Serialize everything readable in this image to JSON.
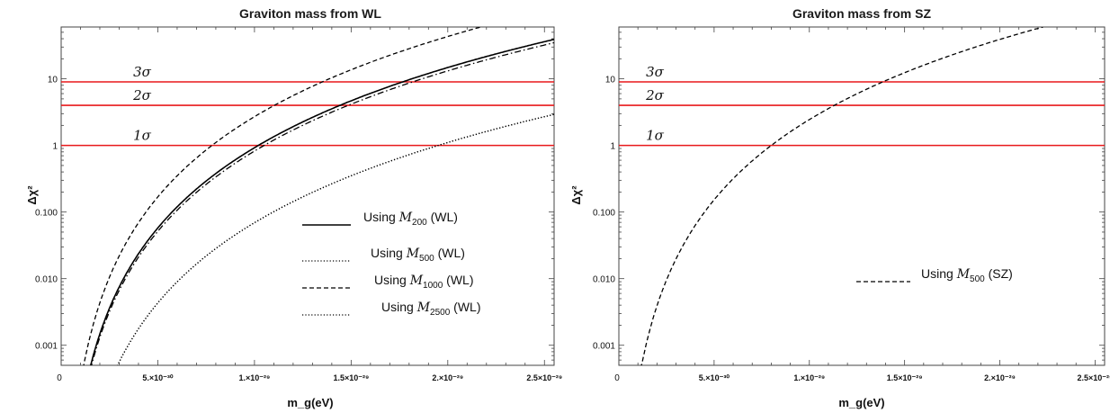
{
  "chart_data": [
    {
      "type": "line",
      "title": "Graviton mass from WL",
      "xlabel": "m_g(eV)",
      "ylabel": "Δχ²",
      "x_scale": "linear",
      "y_scale": "log",
      "xlim": [
        0,
        2.55e-29
      ],
      "ylim": [
        0.0005,
        60
      ],
      "x_ticks": [
        {
          "value": 0,
          "label": "0"
        },
        {
          "value": 5e-30,
          "label": "5.×10⁻³⁰"
        },
        {
          "value": 1e-29,
          "label": "1.×10⁻²⁹"
        },
        {
          "value": 1.5e-29,
          "label": "1.5×10⁻²⁹"
        },
        {
          "value": 2e-29,
          "label": "2.×10⁻²⁹"
        },
        {
          "value": 2.5e-29,
          "label": "2.5×10⁻²⁹"
        }
      ],
      "y_ticks": [
        {
          "value": 0.001,
          "label": "0.001"
        },
        {
          "value": 0.01,
          "label": "0.010"
        },
        {
          "value": 0.1,
          "label": "0.100"
        },
        {
          "value": 1,
          "label": "1"
        },
        {
          "value": 10,
          "label": "10"
        }
      ],
      "reference_lines": [
        {
          "value": 1,
          "label": "1σ",
          "color": "#e8191b"
        },
        {
          "value": 4,
          "label": "2σ",
          "color": "#e8191b"
        },
        {
          "value": 9,
          "label": "3σ",
          "color": "#e8191b"
        }
      ],
      "series": [
        {
          "name": "Using M200 (WL)",
          "style": "solid",
          "color": "#000000",
          "x_at_1sigma": 1.02e-29,
          "legend_label": "Using ",
          "legend_symbol": "M",
          "legend_sub": "200",
          "legend_suffix": " (WL)"
        },
        {
          "name": "Using M500 (WL)",
          "style": "dotted",
          "color": "#000000",
          "x_at_1sigma": 1.95e-29,
          "legend_label": "Using ",
          "legend_symbol": "M",
          "legend_sub": "500",
          "legend_suffix": " (WL)"
        },
        {
          "name": "Using M1000 (WL)",
          "style": "dashed",
          "color": "#000000",
          "x_at_1sigma": 7.8e-30,
          "legend_label": "Using ",
          "legend_symbol": "M",
          "legend_sub": "1000",
          "legend_suffix": " (WL)"
        },
        {
          "name": "Using M2500 (WL)",
          "style": "dotted",
          "color": "#000000",
          "x_at_1sigma": 1.95e-29,
          "legend_label": "Using ",
          "legend_symbol": "M",
          "legend_sub": "2500",
          "legend_suffix": " (WL)"
        }
      ],
      "unlabeled_series": [
        {
          "style": "dashdot",
          "color": "#000000",
          "x_at_1sigma": 1.05e-29
        }
      ],
      "legend_position": "lower-right"
    },
    {
      "type": "line",
      "title": "Graviton mass from SZ",
      "xlabel": "m_g(eV)",
      "ylabel": "Δχ²",
      "x_scale": "linear",
      "y_scale": "log",
      "xlim": [
        0,
        2.55e-29
      ],
      "ylim": [
        0.0005,
        60
      ],
      "x_ticks": [
        {
          "value": 0,
          "label": "0"
        },
        {
          "value": 5e-30,
          "label": "5.×10⁻³⁰"
        },
        {
          "value": 1e-29,
          "label": "1.×10⁻²⁹"
        },
        {
          "value": 1.5e-29,
          "label": "1.5×10⁻²⁹"
        },
        {
          "value": 2e-29,
          "label": "2.×10⁻²⁹"
        },
        {
          "value": 2.5e-29,
          "label": "2.5×10⁻²⁹"
        }
      ],
      "y_ticks": [
        {
          "value": 0.001,
          "label": "0.001"
        },
        {
          "value": 0.01,
          "label": "0.010"
        },
        {
          "value": 0.1,
          "label": "0.100"
        },
        {
          "value": 1,
          "label": "1"
        },
        {
          "value": 10,
          "label": "10"
        }
      ],
      "reference_lines": [
        {
          "value": 1,
          "label": "1σ",
          "color": "#e8191b"
        },
        {
          "value": 4,
          "label": "2σ",
          "color": "#e8191b"
        },
        {
          "value": 9,
          "label": "3σ",
          "color": "#e8191b"
        }
      ],
      "series": [
        {
          "name": "Using M500 (SZ)",
          "style": "dashed",
          "color": "#000000",
          "x_at_1sigma": 8e-30,
          "legend_label": "Using ",
          "legend_symbol": "M",
          "legend_sub": "500",
          "legend_suffix": " (SZ)"
        }
      ],
      "legend_position": "lower-right"
    }
  ]
}
